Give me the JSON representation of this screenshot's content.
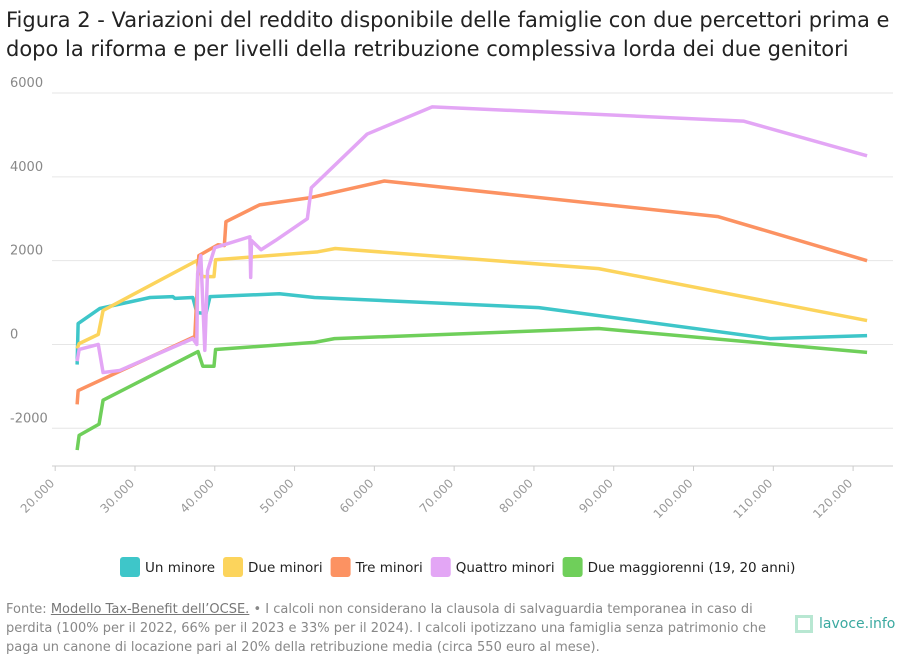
{
  "chart_data": {
    "type": "line",
    "title": "Figura 2 - Variazioni del reddito disponibile delle famiglie con due percettori prima e dopo la riforma e per livelli della retribuzione complessiva lorda dei due genitori",
    "xlim": [
      19600,
      125000
    ],
    "ylim": [
      -2900,
      6000
    ],
    "xticks": [
      {
        "value": 20000,
        "label": "20.000"
      },
      {
        "value": 30000,
        "label": "30.000"
      },
      {
        "value": 40000,
        "label": "40.000"
      },
      {
        "value": 50000,
        "label": "50.000"
      },
      {
        "value": 60000,
        "label": "60.000"
      },
      {
        "value": 70000,
        "label": "70.000"
      },
      {
        "value": 80000,
        "label": "80.000"
      },
      {
        "value": 90000,
        "label": "90.000"
      },
      {
        "value": 100000,
        "label": "100.000"
      },
      {
        "value": 110000,
        "label": "110.000"
      },
      {
        "value": 120000,
        "label": "120.000"
      }
    ],
    "yticks": [
      6000,
      4000,
      2000,
      0,
      -2000
    ],
    "grid": true,
    "series": [
      {
        "name": "Un minore",
        "color": "#3ec6c9",
        "x": [
          22750,
          22875,
          25600,
          31900,
          34750,
          35000,
          37250,
          37750,
          38900,
          39400,
          48100,
          52500,
          80600,
          109600,
          121750
        ],
        "values": [
          -480,
          500,
          860,
          1120,
          1140,
          1100,
          1120,
          760,
          740,
          1140,
          1210,
          1120,
          880,
          140,
          210
        ]
      },
      {
        "name": "Due minori",
        "color": "#fcd45c",
        "x": [
          22750,
          23000,
          25400,
          26000,
          37750,
          38100,
          38500,
          39900,
          40100,
          52900,
          55100,
          88100,
          121750
        ],
        "values": [
          -100,
          20,
          240,
          810,
          2000,
          1720,
          1620,
          1620,
          2020,
          2210,
          2290,
          1810,
          570
        ]
      },
      {
        "name": "Tre minori",
        "color": "#fc9262",
        "x": [
          22750,
          22875,
          37500,
          38000,
          40400,
          41200,
          41400,
          45600,
          51900,
          61250,
          103100,
          121750
        ],
        "values": [
          -1430,
          -1100,
          190,
          2120,
          2380,
          2360,
          2930,
          3330,
          3500,
          3900,
          3050,
          2000
        ]
      },
      {
        "name": "Quattro minori",
        "color": "#e3a6f5",
        "x": [
          22750,
          23000,
          25400,
          26000,
          28100,
          37250,
          37750,
          37850,
          38250,
          38750,
          39100,
          40000,
          44400,
          44500,
          44600,
          45800,
          47600,
          51600,
          52100,
          59100,
          67250,
          106250,
          121750
        ],
        "values": [
          -400,
          -120,
          0,
          -670,
          -620,
          140,
          0,
          1690,
          2120,
          -140,
          1760,
          2310,
          2570,
          1600,
          2480,
          2260,
          2480,
          3000,
          3740,
          5020,
          5670,
          5330,
          4500
        ]
      },
      {
        "name": "Due maggiorenni (19, 20 anni)",
        "color": "#6fcf5a",
        "x": [
          22750,
          23000,
          25500,
          26000,
          37900,
          38500,
          39900,
          40100,
          52500,
          55000,
          88100,
          121750
        ],
        "values": [
          -2520,
          -2170,
          -1900,
          -1330,
          -170,
          -520,
          -520,
          -120,
          50,
          140,
          380,
          -190
        ]
      }
    ]
  },
  "footer": {
    "source_label": "Fonte:",
    "source_link": "Modello Tax-Benefit dell’OCSE.",
    "note": "• I calcoli non considerano la clausola di salvaguardia temporanea in caso di perdita (100% per il 2022, 66% per il 2023 e 33% per il 2024). I calcoli ipotizzano una famiglia senza patrimonio che paga un canone di locazione pari al 20% della retribuzione media (circa 550 euro al mese).",
    "logo": "lavoce.info"
  }
}
